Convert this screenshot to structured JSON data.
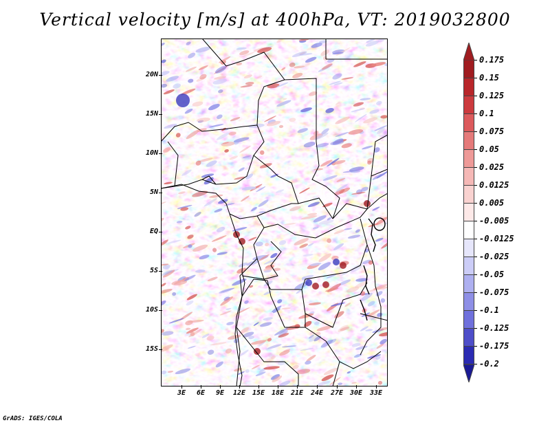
{
  "title": "Vertical velocity [m/s] at 400hPa, VT: 2019032800",
  "credit": "GrADS: IGES/COLA",
  "lat_labels": [
    "20N",
    "15N",
    "10N",
    "5N",
    "EQ",
    "5S",
    "10S",
    "15S"
  ],
  "lon_labels": [
    "3E",
    "6E",
    "9E",
    "12E",
    "15E",
    "18E",
    "21E",
    "24E",
    "27E",
    "30E",
    "33E"
  ],
  "colorbar": {
    "labels": [
      "0.175",
      "0.15",
      "0.125",
      "0.1",
      "0.075",
      "0.05",
      "0.025",
      "0.0125",
      "0.005",
      "-0.005",
      "-0.0125",
      "-0.025",
      "-0.05",
      "-0.075",
      "-0.1",
      "-0.125",
      "-0.175",
      "-0.2"
    ],
    "colors": [
      "#a01c20",
      "#b8262a",
      "#cc3a3e",
      "#dc5a5c",
      "#e57a7a",
      "#ee9a98",
      "#f5b8b6",
      "#f9d2d0",
      "#fde9e8",
      "#ffffff",
      "#e6e6fb",
      "#cccdf7",
      "#aeb0f0",
      "#8e8fe6",
      "#6f70dc",
      "#4e4ec9",
      "#2b2bb3",
      "#1a1a95"
    ],
    "top_color": "#a01c20",
    "bottom_color": "#1a1a95"
  },
  "chart_data": {
    "type": "heatmap",
    "title": "Vertical velocity [m/s] at 400hPa, VT: 2019032800",
    "variable": "Vertical velocity",
    "units": "m/s",
    "level": "400hPa",
    "valid_time": "2019032800",
    "lon_range": [
      0,
      35
    ],
    "lat_range": [
      -20,
      24
    ],
    "levels": [
      -0.2,
      -0.175,
      -0.125,
      -0.1,
      -0.075,
      -0.05,
      -0.025,
      -0.0125,
      -0.005,
      0.005,
      0.0125,
      0.025,
      0.05,
      0.075,
      0.1,
      0.125,
      0.15,
      0.175
    ]
  }
}
